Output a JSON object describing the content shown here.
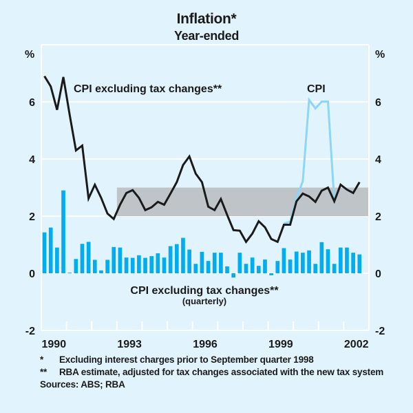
{
  "header": {
    "title": "Inflation*",
    "subtitle": "Year-ended"
  },
  "footnotes": [
    {
      "mark": "*",
      "text": "Excluding interest charges prior to September quarter 1998"
    },
    {
      "mark": "**",
      "text": "RBA estimate, adjusted for tax changes associated with the new tax system"
    }
  ],
  "sources": "Sources: ABS; RBA",
  "chart_data": {
    "type": "line",
    "title": "Inflation*",
    "subtitle": "Year-ended",
    "xlabel": "",
    "ylabel_left": "%",
    "ylabel_right": "%",
    "ylim": [
      -2,
      8
    ],
    "yticks": [
      -2,
      0,
      2,
      4,
      6
    ],
    "ytick_labels": [
      "-2",
      "0",
      "2",
      "4",
      "6"
    ],
    "x_start": "Mar 1990",
    "x_end": "Dec 2002",
    "xtick_labels": [
      "1990",
      "1993",
      "1996",
      "1999",
      "2002"
    ],
    "xtick_label_years": [
      1990,
      1993,
      1996,
      1999,
      2002
    ],
    "year_range": [
      1990,
      2003
    ],
    "grid": true,
    "target_band": {
      "label": "RBA target band",
      "from": 2,
      "to": 3,
      "start": "1993",
      "color": "#bec4c8"
    },
    "quarters": [
      "Mar-1990",
      "Jun-1990",
      "Sep-1990",
      "Dec-1990",
      "Mar-1991",
      "Jun-1991",
      "Sep-1991",
      "Dec-1991",
      "Mar-1992",
      "Jun-1992",
      "Sep-1992",
      "Dec-1992",
      "Mar-1993",
      "Jun-1993",
      "Sep-1993",
      "Dec-1993",
      "Mar-1994",
      "Jun-1994",
      "Sep-1994",
      "Dec-1994",
      "Mar-1995",
      "Jun-1995",
      "Sep-1995",
      "Dec-1995",
      "Mar-1996",
      "Jun-1996",
      "Sep-1996",
      "Dec-1996",
      "Mar-1997",
      "Jun-1997",
      "Sep-1997",
      "Dec-1997",
      "Mar-1998",
      "Jun-1998",
      "Sep-1998",
      "Dec-1998",
      "Mar-1999",
      "Jun-1999",
      "Sep-1999",
      "Dec-1999",
      "Mar-2000",
      "Jun-2000",
      "Sep-2000",
      "Dec-2000",
      "Mar-2001",
      "Jun-2001",
      "Sep-2001",
      "Dec-2001",
      "Mar-2002",
      "Jun-2002",
      "Sep-2002"
    ],
    "series": [
      {
        "name": "CPI excluding tax changes** (quarterly)",
        "type": "bar",
        "color": "#00aeef",
        "values": [
          1.43,
          1.6,
          0.9,
          2.9,
          0.02,
          0.5,
          1.03,
          1.1,
          0.47,
          0.1,
          0.47,
          0.92,
          0.9,
          0.55,
          0.54,
          0.63,
          0.54,
          0.6,
          0.7,
          0.55,
          0.95,
          1.02,
          1.24,
          0.83,
          0.33,
          0.75,
          0.43,
          0.72,
          0.72,
          0.24,
          -0.15,
          0.72,
          0.33,
          0.55,
          0.26,
          0.48,
          -0.07,
          0.43,
          0.88,
          0.48,
          0.76,
          0.72,
          0.8,
          0.33,
          1.09,
          0.84,
          0.33,
          0.9,
          0.9,
          0.72,
          0.66
        ]
      },
      {
        "name": "CPI excluding tax changes**",
        "type": "line",
        "color": "#1a1a1a",
        "values": [
          6.9,
          6.54,
          5.72,
          6.87,
          5.55,
          4.3,
          4.47,
          2.62,
          3.1,
          2.64,
          2.09,
          1.9,
          2.4,
          2.81,
          2.91,
          2.64,
          2.21,
          2.31,
          2.5,
          2.4,
          2.79,
          3.19,
          3.79,
          4.09,
          3.49,
          3.19,
          2.33,
          2.21,
          2.6,
          2.04,
          1.51,
          1.49,
          1.1,
          1.39,
          1.82,
          1.61,
          1.2,
          1.1,
          1.7,
          1.7,
          2.52,
          2.79,
          2.69,
          2.5,
          2.89,
          3.0,
          2.52,
          3.1,
          2.93,
          2.81,
          3.19
        ]
      },
      {
        "name": "CPI",
        "type": "line",
        "color": "#8dd6f5",
        "start_index": 38,
        "values": [
          1.75,
          1.8,
          2.64,
          3.22,
          6.07,
          5.77,
          6.01,
          6.01,
          2.52
        ]
      }
    ],
    "annotations": [
      {
        "text": "CPI excluding tax changes**",
        "series": 1,
        "position": "top-left"
      },
      {
        "text": "CPI",
        "series": 2,
        "position": "top-right"
      },
      {
        "text": "CPI excluding tax changes**",
        "subtext": "(quarterly)",
        "series": 0,
        "position": "bottom-center"
      }
    ]
  }
}
